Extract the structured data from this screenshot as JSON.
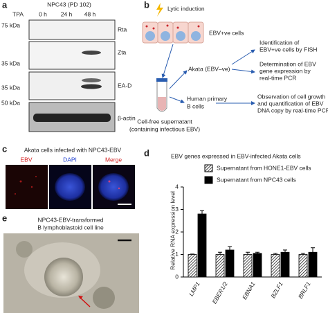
{
  "figure": {
    "panel_a": {
      "letter": "a",
      "cell_line": "NPC43 (PD 102)",
      "treatment": "TPA",
      "timepoints": [
        "0 h",
        "24 h",
        "48 h"
      ],
      "markers": [
        "75 kDa",
        "35 kDa",
        "35 kDa",
        "50 kDa"
      ],
      "proteins": [
        "Rta",
        "Zta",
        "EA-D",
        "β-actin"
      ]
    },
    "panel_b": {
      "letter": "b",
      "induction": "Lytic induction",
      "cells": "EBV+ve cells",
      "supernatant": [
        "Cell-free supernatant",
        "(containing infectious EBV)"
      ],
      "targets": [
        [
          "Akata (EBV–ve)"
        ],
        [
          "Human primary",
          "B cells"
        ]
      ],
      "outcomes": [
        [
          "Identification of",
          "EBV+ve cells by FISH"
        ],
        [
          "Determination of EBV",
          "gene expression by",
          "real-time PCR"
        ],
        [
          "Observation of cell growth",
          "and quantification of EBV",
          "DNA copy by real-time PCR"
        ]
      ]
    },
    "panel_c": {
      "letter": "c",
      "title": "Akata cells infected with NPC43-EBV",
      "channels": [
        "EBV",
        "DAPI",
        "Merge"
      ]
    },
    "panel_e": {
      "letter": "e",
      "title": [
        "NPC43-EBV-transformed",
        "B lymphoblastoid cell line"
      ]
    }
  },
  "chart_data": {
    "type": "bar",
    "letter": "d",
    "title": "EBV genes expressed in EBV-infected Akata cells",
    "ylabel": "Relative RNA expression level",
    "categories": [
      "LMP1",
      "EBER1/2",
      "EBNA1",
      "BZLF1",
      "BRLF1"
    ],
    "series": [
      {
        "name": "Supernatant from HONE1-EBV cells",
        "color": "#ffffff",
        "pattern": "hatch",
        "values": [
          1,
          1,
          1,
          1,
          1
        ],
        "errors": [
          0.02,
          0.1,
          0.1,
          0.05,
          0.05
        ]
      },
      {
        "name": "Supernatant from NPC43 cells",
        "color": "#000000",
        "values": [
          2.8,
          1.2,
          1.05,
          1.1,
          1.1
        ],
        "errors": [
          0.15,
          0.15,
          0.05,
          0.1,
          0.2
        ]
      }
    ],
    "ylim": [
      0,
      4
    ],
    "yticks": [
      0,
      1,
      2,
      3,
      4
    ]
  }
}
